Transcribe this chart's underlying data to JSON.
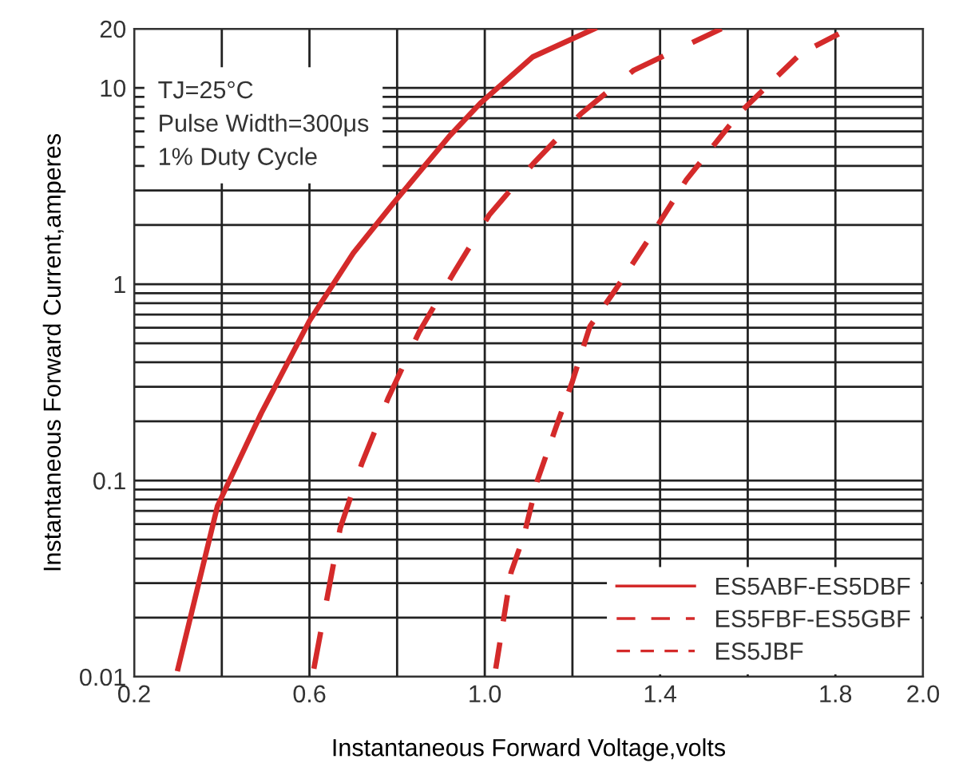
{
  "chart_data": {
    "type": "line",
    "xlabel": "Instantaneous Forward Voltage,volts",
    "ylabel": "Instantaneous Forward Current,amperes",
    "log": "y",
    "grid": true,
    "legend": "bottom right",
    "marker": "none",
    "xlim": [
      0.2,
      2.0
    ],
    "ylim": [
      0.01,
      20
    ],
    "xticks": [
      {
        "value": 0.2,
        "label": "0.2"
      },
      {
        "value": 0.4,
        "label": null
      },
      {
        "value": 0.6,
        "label": "0.6"
      },
      {
        "value": 0.8,
        "label": null
      },
      {
        "value": 1.0,
        "label": "1.0"
      },
      {
        "value": 1.2,
        "label": null
      },
      {
        "value": 1.4,
        "label": "1.4"
      },
      {
        "value": 1.6,
        "label": null
      },
      {
        "value": 1.8,
        "label": "1.8"
      },
      {
        "value": 2.0,
        "label": "2.0"
      }
    ],
    "yticks": [
      0.01,
      {
        "value": 0.02,
        "label": null
      },
      {
        "value": 0.03,
        "label": null
      },
      {
        "value": 0.04,
        "label": null
      },
      {
        "value": 0.05,
        "label": null
      },
      {
        "value": 0.06,
        "label": null
      },
      {
        "value": 0.07,
        "label": null
      },
      {
        "value": 0.08,
        "label": null
      },
      {
        "value": 0.09,
        "label": null
      },
      0.1,
      {
        "value": 0.2,
        "label": null
      },
      {
        "value": 0.3,
        "label": null
      },
      {
        "value": 0.4,
        "label": null
      },
      {
        "value": 0.5,
        "label": null
      },
      {
        "value": 0.6,
        "label": null
      },
      {
        "value": 0.7,
        "label": null
      },
      {
        "value": 0.8,
        "label": null
      },
      {
        "value": 0.9,
        "label": null
      },
      1,
      {
        "value": 2,
        "label": null
      },
      {
        "value": 3,
        "label": null
      },
      {
        "value": 4,
        "label": null
      },
      {
        "value": 5,
        "label": null
      },
      {
        "value": 6,
        "label": null
      },
      {
        "value": 7,
        "label": null
      },
      {
        "value": 8,
        "label": null
      },
      {
        "value": 9,
        "label": null
      },
      10,
      20
    ],
    "annotations": [
      "TJ=25°C\nPulse Width=300μs\n1% Duty Cycle"
    ],
    "series": [
      {
        "name": "ES5ABF-ES5DBF",
        "color": "#d42a2a",
        "line_style": "solid",
        "x": [
          0.3,
          0.39,
          0.49,
          0.6,
          0.7,
          0.79,
          0.92,
          0.99,
          1.11,
          1.25
        ],
        "values": [
          0.011,
          0.074,
          0.22,
          0.65,
          1.44,
          2.56,
          5.7,
          8.35,
          14.4,
          20
        ]
      },
      {
        "name": "ES5FBF-ES5GBF",
        "color": "#d42a2a",
        "line_style": "dashed",
        "x": [
          0.61,
          0.67,
          0.72,
          0.78,
          0.85,
          0.93,
          1.01,
          1.11,
          1.22,
          1.34,
          1.54
        ],
        "values": [
          0.011,
          0.057,
          0.123,
          0.264,
          0.57,
          1.15,
          2.25,
          4.1,
          7.4,
          12.3,
          20
        ]
      },
      {
        "name": "ES5JBF",
        "color": "#d42a2a",
        "line_style": "dashed",
        "x": [
          1.025,
          1.06,
          1.09,
          1.12,
          1.16,
          1.2,
          1.24,
          1.3,
          1.39,
          1.46,
          1.58,
          1.72,
          1.83
        ],
        "values": [
          0.011,
          0.034,
          0.053,
          0.1,
          0.18,
          0.32,
          0.61,
          0.95,
          1.92,
          3.4,
          7.4,
          14.9,
          20
        ]
      }
    ]
  }
}
